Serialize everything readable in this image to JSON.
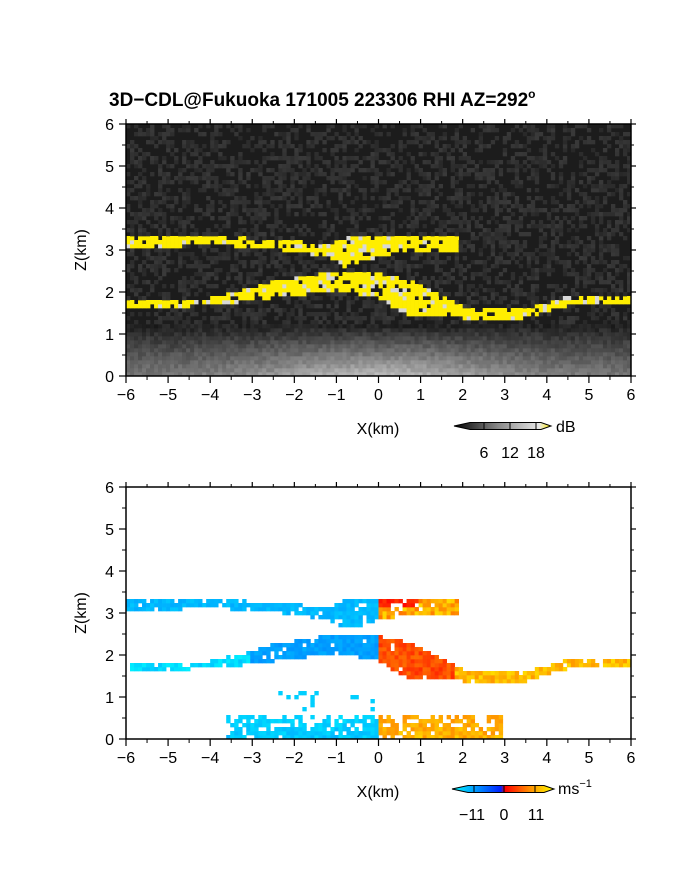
{
  "chart_data": [
    {
      "type": "heatmap",
      "title": "3D−CDL@Fukuoka 171005 223306 RHI AZ=292º",
      "title_main": "3D−CDL@Fukuoka 171005 223306 RHI AZ=292",
      "title_deg": "o",
      "xlabel": "X(km)",
      "ylabel": "Z(km)",
      "xlim": [
        -6,
        6
      ],
      "ylim": [
        0,
        6
      ],
      "xticks": [
        "−6",
        "−5",
        "−4",
        "−3",
        "−2",
        "−1",
        "0",
        "1",
        "2",
        "3",
        "4",
        "5",
        "6"
      ],
      "yticks": [
        "0",
        "1",
        "2",
        "3",
        "4",
        "5",
        "6"
      ],
      "quantity": "SNR",
      "colorbar": {
        "unit": "dB",
        "ticks": [
          "6",
          "12",
          "18"
        ],
        "range": [
          0,
          20
        ],
        "colors": [
          "#000000",
          "#888888",
          "#e8e8e8",
          "#ffee00"
        ]
      },
      "layers": [
        {
          "name": "upper cloud layer",
          "x_range": [
            -6,
            1.8
          ],
          "z_range": [
            2.9,
            3.35
          ],
          "value_db": ">18"
        },
        {
          "name": "lower cloud layer",
          "x_range": [
            -6,
            6
          ],
          "z_range": [
            1.5,
            2.3
          ],
          "value_db": ">18"
        },
        {
          "name": "boundary layer",
          "x_range": [
            -6,
            6
          ],
          "z_range": [
            0,
            1.2
          ],
          "value_db": "6–16"
        }
      ]
    },
    {
      "type": "heatmap",
      "title": "",
      "xlabel": "X(km)",
      "ylabel": "Z(km)",
      "xlim": [
        -6,
        6
      ],
      "ylim": [
        0,
        6
      ],
      "xticks": [
        "−6",
        "−5",
        "−4",
        "−3",
        "−2",
        "−1",
        "0",
        "1",
        "2",
        "3",
        "4",
        "5",
        "6"
      ],
      "yticks": [
        "0",
        "1",
        "2",
        "3",
        "4",
        "5",
        "6"
      ],
      "quantity": "Doppler velocity",
      "colorbar": {
        "unit": "ms",
        "unit_exp": "−1",
        "ticks": [
          "−11",
          "0",
          "11"
        ],
        "range": [
          -14,
          14
        ],
        "colors": [
          "#00ffff",
          "#0040ff",
          "#ff0000",
          "#ffff00"
        ]
      },
      "layers": [
        {
          "name": "upper layer (approaching)",
          "x_range": [
            -6,
            0
          ],
          "z_range": [
            3.0,
            3.35
          ],
          "velocity_ms": -9
        },
        {
          "name": "upper layer (receding)",
          "x_range": [
            0,
            2.2
          ],
          "z_range": [
            2.9,
            3.35
          ],
          "velocity_ms": 6
        },
        {
          "name": "lower layer (approaching)",
          "x_range": [
            -6,
            0
          ],
          "z_range": [
            1.6,
            2.3
          ],
          "velocity_ms": -7
        },
        {
          "name": "lower layer (receding)",
          "x_range": [
            0,
            6
          ],
          "z_range": [
            1.3,
            2.2
          ],
          "velocity_ms": 7
        },
        {
          "name": "near-surface (approaching)",
          "x_range": [
            -3.5,
            0
          ],
          "z_range": [
            0,
            0.6
          ],
          "velocity_ms": -6
        },
        {
          "name": "near-surface (receding)",
          "x_range": [
            0,
            3
          ],
          "z_range": [
            0,
            0.6
          ],
          "velocity_ms": 7
        }
      ]
    }
  ]
}
